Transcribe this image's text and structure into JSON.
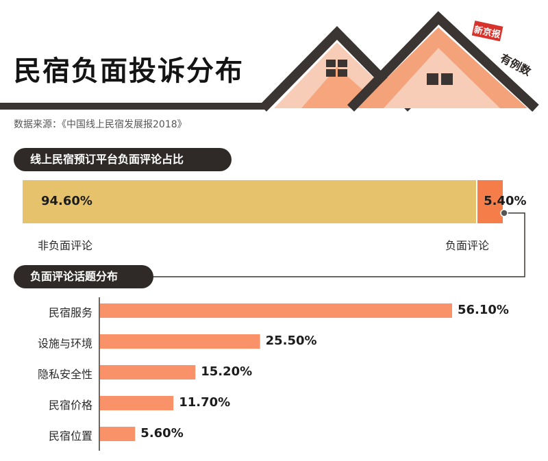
{
  "header": {
    "title": "民宿负面投诉分布",
    "source": "数据来源：《中国线上民宿发展报2018》",
    "logo_stamp": "新京报",
    "logo_text": "有例数"
  },
  "colors": {
    "accent": "#f47d4a",
    "bar_orange": "#f99268",
    "gold": "#e6c26c",
    "dark": "#2f2a28"
  },
  "chart_data": [
    {
      "type": "bar",
      "stacked": true,
      "title": "线上民宿预订平台负面评论占比",
      "categories": [
        "非负面评论",
        "负面评论"
      ],
      "values": [
        94.6,
        5.4
      ],
      "labels": [
        "94.60%",
        "5.40%"
      ],
      "colors": [
        "#e6c26c",
        "#f47d4a"
      ]
    },
    {
      "type": "bar",
      "orientation": "horizontal",
      "title": "负面评论话题分布",
      "categories": [
        "民宿服务",
        "设施与环境",
        "隐私安全性",
        "民宿价格",
        "民宿位置"
      ],
      "values": [
        56.1,
        25.5,
        15.2,
        11.7,
        5.6
      ],
      "labels": [
        "56.10%",
        "25.50%",
        "15.20%",
        "11.70%",
        "5.60%"
      ],
      "xlim": [
        0,
        56.1
      ],
      "color": "#f99268"
    }
  ]
}
